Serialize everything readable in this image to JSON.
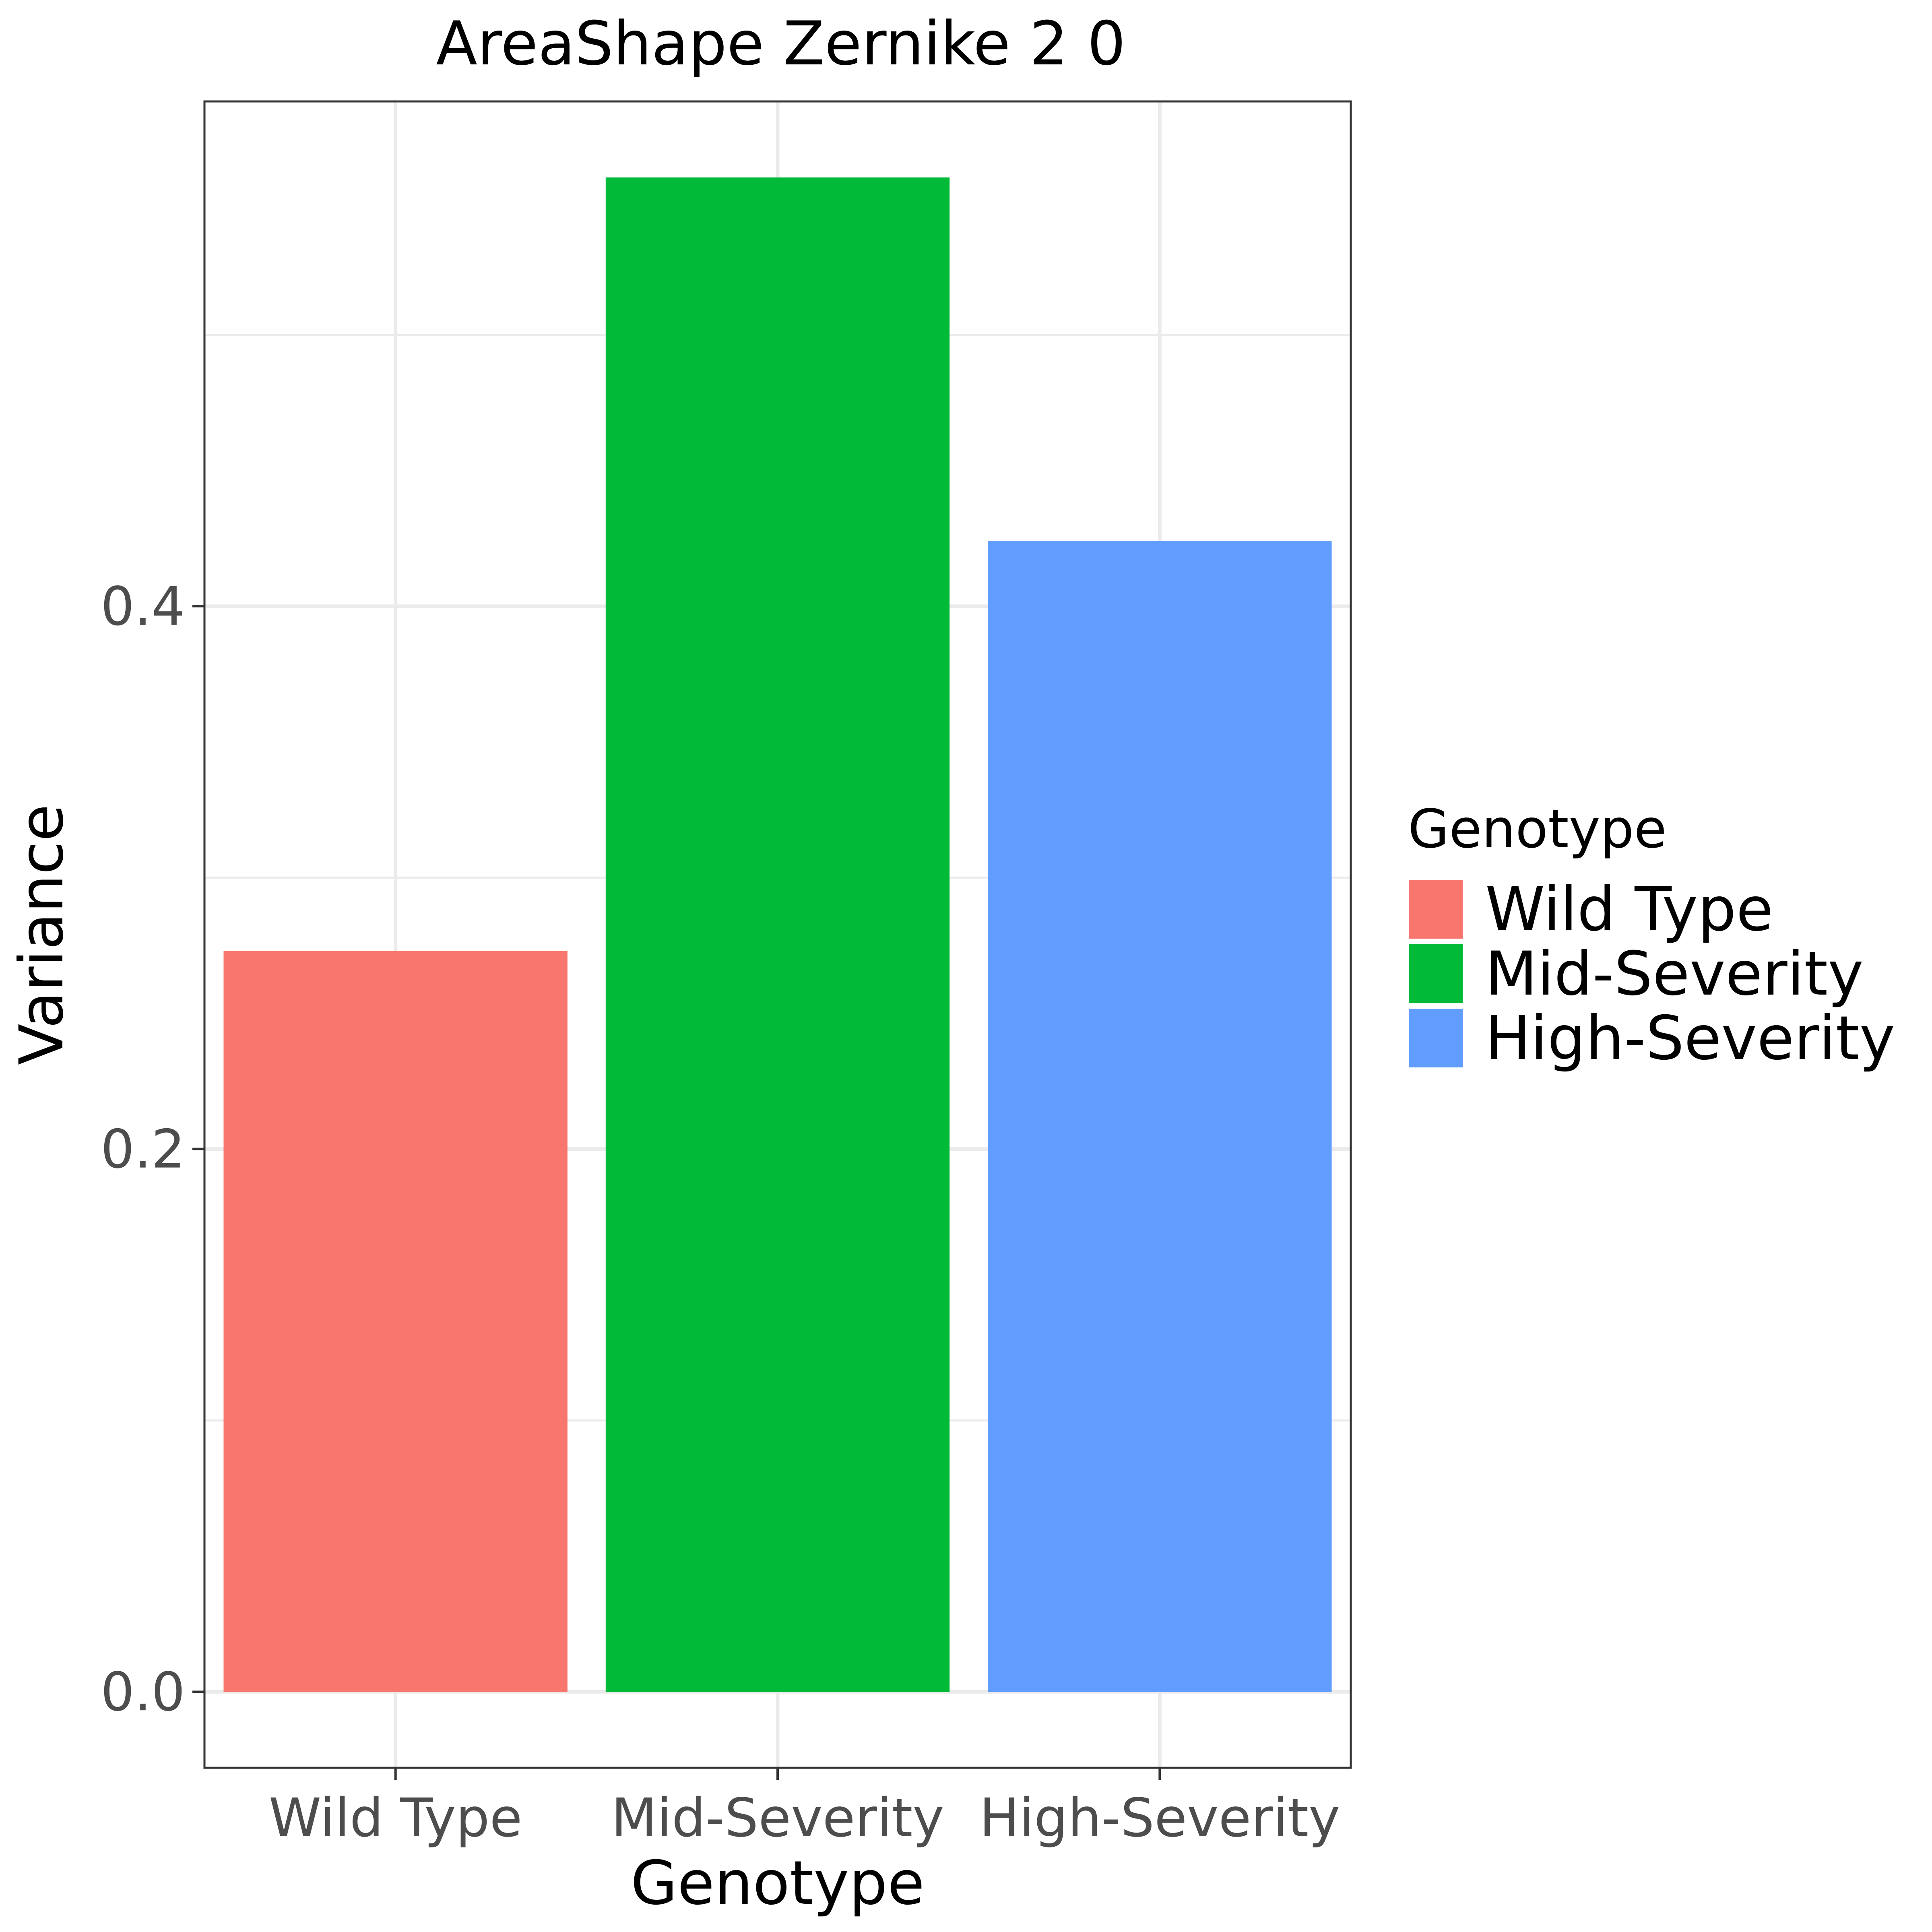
{
  "chart_data": {
    "type": "bar",
    "title": "AreaShape Zernike 2 0",
    "xlabel": "Genotype",
    "ylabel": "Variance",
    "categories": [
      "Wild Type",
      "Mid-Severity",
      "High-Severity"
    ],
    "values": [
      0.273,
      0.558,
      0.424
    ],
    "colors": [
      "#F8766D",
      "#00BA38",
      "#619CFF"
    ],
    "ylim": [
      -0.028,
      0.586
    ],
    "yticks": [
      0.0,
      0.2,
      0.4
    ],
    "ytick_labels": [
      "0.0",
      "0.2",
      "0.4"
    ],
    "yminor": [
      0.1,
      0.3,
      0.5
    ],
    "grid": true,
    "legend": {
      "title": "Genotype",
      "placement": "right",
      "entries": [
        "Wild Type",
        "Mid-Severity",
        "High-Severity"
      ]
    }
  }
}
